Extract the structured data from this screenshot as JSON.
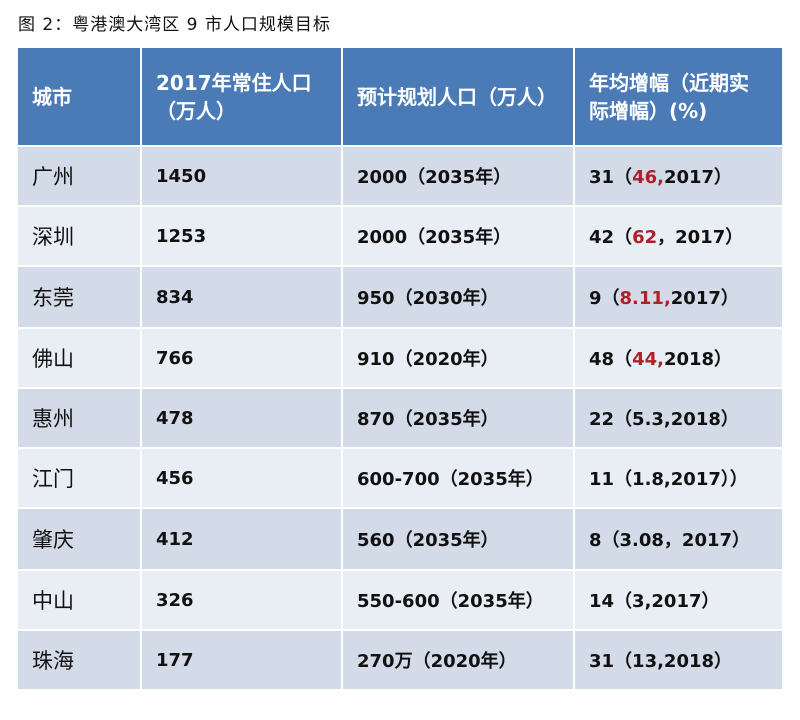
{
  "caption": "图 2：粤港澳大湾区 9 市人口规模目标",
  "table": {
    "headers": [
      "城市",
      "2017年常住人口（万人）",
      "预计规划人口（万人）",
      "年均增幅（近期实际增幅）(%)"
    ],
    "rows": [
      {
        "city": "广州",
        "pop2017": "1450",
        "planned": "2000（2035年）",
        "growth": {
          "pre": "31（",
          "red": "46,",
          "post": "2017）"
        }
      },
      {
        "city": "深圳",
        "pop2017": "1253",
        "planned": "2000（2035年）",
        "growth": {
          "pre": "42（",
          "red": "62",
          "post": "，2017）"
        }
      },
      {
        "city": "东莞",
        "pop2017": "834",
        "planned": "950（2030年）",
        "growth": {
          "pre": "9（",
          "red": "8.11,",
          "post": "2017）"
        }
      },
      {
        "city": "佛山",
        "pop2017": "766",
        "planned": "910（2020年）",
        "growth": {
          "pre": "48（",
          "red": "44,",
          "post": "2018）"
        }
      },
      {
        "city": "惠州",
        "pop2017": "478",
        "planned": "870（2035年）",
        "growth": {
          "pre": "22（5.3,2018）",
          "red": "",
          "post": ""
        }
      },
      {
        "city": "江门",
        "pop2017": "456",
        "planned": "600-700（2035年）",
        "growth": {
          "pre": "11（1.8,2017））",
          "red": "",
          "post": ""
        }
      },
      {
        "city": "肇庆",
        "pop2017": "412",
        "planned": "560（2035年）",
        "growth": {
          "pre": "8（3.08，2017）",
          "red": "",
          "post": ""
        }
      },
      {
        "city": "中山",
        "pop2017": "326",
        "planned": "550-600（2035年）",
        "growth": {
          "pre": "14（3,2017）",
          "red": "",
          "post": ""
        }
      },
      {
        "city": "珠海",
        "pop2017": "177",
        "planned": "270万（2020年）",
        "growth": {
          "pre": "31（13,2018）",
          "red": "",
          "post": ""
        }
      }
    ]
  }
}
